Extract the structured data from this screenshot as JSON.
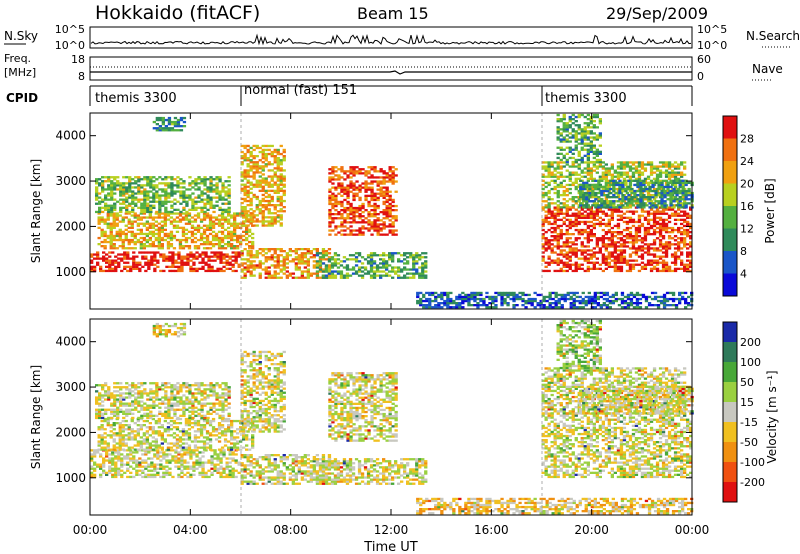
{
  "header": {
    "station": "Hokkaido (fitACF)",
    "beam": "Beam 15",
    "date": "29/Sep/2009"
  },
  "top_panels": {
    "nsky": {
      "label": "N.Sky",
      "left_ticks": [
        "10^5",
        "10^0"
      ],
      "right_ticks": [
        "10^5",
        "10^0"
      ],
      "right_label": "N.Search",
      "right_line_style": "dotted"
    },
    "freq": {
      "label_line1": "Freq.",
      "label_line2": "[MHz]",
      "left_ticks": [
        "18",
        "8"
      ],
      "right_ticks": [
        "60",
        "0"
      ],
      "right_label": "Nave",
      "right_line_style": "dotted"
    },
    "cpid": {
      "label": "CPID",
      "segments": [
        {
          "start_hour": 0,
          "name": "themis 3300"
        },
        {
          "start_hour": 6,
          "name": "normal (fast) 151"
        },
        {
          "start_hour": 18,
          "name": "themis 3300"
        }
      ]
    }
  },
  "x_axis": {
    "label": "Time UT",
    "ticks": [
      "00:00",
      "04:00",
      "08:00",
      "12:00",
      "16:00",
      "20:00",
      "00:00"
    ],
    "range_hours": [
      0,
      24
    ]
  },
  "panels": {
    "power": {
      "ylabel": "Slant Range [km]",
      "yticks": [
        1000,
        2000,
        3000,
        4000
      ],
      "yrange": [
        180,
        4500
      ],
      "colorbar_label": "Power [dB]",
      "colorbar_ticks": [
        "4",
        "8",
        "12",
        "16",
        "20",
        "24",
        "28"
      ],
      "colors": [
        "#0a0ad8",
        "#1a56c8",
        "#2f8a5a",
        "#54b040",
        "#b8d020",
        "#f0a010",
        "#f07010",
        "#e01010"
      ]
    },
    "velocity": {
      "ylabel": "Slant Range [km]",
      "yticks": [
        1000,
        2000,
        3000,
        4000
      ],
      "yrange": [
        180,
        4500
      ],
      "colorbar_label": "Velocity [m s⁻¹]",
      "colorbar_ticks": [
        "200",
        "100",
        "50",
        "15",
        "-15",
        "-50",
        "-100",
        "-200"
      ],
      "colors": [
        "#1a2aa8",
        "#2f7a5a",
        "#48a838",
        "#9ad040",
        "#c8c8c0",
        "#f0c020",
        "#f09010",
        "#f05010",
        "#e01010"
      ]
    }
  },
  "chart_data": [
    {
      "type": "heatmap",
      "title": "Power [dB]",
      "xlabel": "Time UT",
      "ylabel": "Slant Range [km]",
      "xlim_hours": [
        0,
        24
      ],
      "ylim": [
        180,
        4500
      ],
      "zlim": [
        0,
        30
      ],
      "echo_regions": [
        {
          "t0": 0.0,
          "t1": 6.0,
          "r0": 1000,
          "r1": 1450,
          "value": 28
        },
        {
          "t0": 0.3,
          "t1": 6.5,
          "r0": 1500,
          "r1": 2300,
          "value": 20
        },
        {
          "t0": 0.2,
          "t1": 5.5,
          "r0": 2300,
          "r1": 3100,
          "value": 14
        },
        {
          "t0": 2.5,
          "t1": 3.8,
          "r0": 4100,
          "r1": 4400,
          "value": 10
        },
        {
          "t0": 6.0,
          "t1": 9.5,
          "r0": 850,
          "r1": 1500,
          "value": 22
        },
        {
          "t0": 6.0,
          "t1": 7.8,
          "r0": 2000,
          "r1": 3800,
          "value": 20
        },
        {
          "t0": 9.5,
          "t1": 12.2,
          "r0": 1800,
          "r1": 3300,
          "value": 26
        },
        {
          "t0": 9.0,
          "t1": 13.4,
          "r0": 850,
          "r1": 1400,
          "value": 12
        },
        {
          "t0": 13.0,
          "t1": 24.0,
          "r0": 200,
          "r1": 550,
          "value": 6
        },
        {
          "t0": 18.0,
          "t1": 24.0,
          "r0": 1000,
          "r1": 2400,
          "value": 27
        },
        {
          "t0": 18.0,
          "t1": 23.7,
          "r0": 2400,
          "r1": 3400,
          "value": 16
        },
        {
          "t0": 19.5,
          "t1": 24.0,
          "r0": 2400,
          "r1": 3000,
          "value": 10
        },
        {
          "t0": 18.6,
          "t1": 20.4,
          "r0": 3400,
          "r1": 4450,
          "value": 12
        }
      ]
    },
    {
      "type": "heatmap",
      "title": "Velocity [m s⁻¹]",
      "xlabel": "Time UT",
      "ylabel": "Slant Range [km]",
      "xlim_hours": [
        0,
        24
      ],
      "ylim": [
        180,
        4500
      ],
      "zlim": [
        -200,
        200
      ],
      "echo_regions": [
        {
          "t0": 0.0,
          "t1": 6.0,
          "r0": 1000,
          "r1": 1600,
          "value": 0
        },
        {
          "t0": 0.3,
          "t1": 6.5,
          "r0": 1600,
          "r1": 2300,
          "value": 0
        },
        {
          "t0": 0.2,
          "t1": 5.5,
          "r0": 2300,
          "r1": 3100,
          "value": 0
        },
        {
          "t0": 2.5,
          "t1": 3.8,
          "r0": 4100,
          "r1": 4400,
          "value": -30
        },
        {
          "t0": 6.0,
          "t1": 9.5,
          "r0": 850,
          "r1": 1500,
          "value": 0
        },
        {
          "t0": 6.0,
          "t1": 7.8,
          "r0": 2000,
          "r1": 3800,
          "value": 0
        },
        {
          "t0": 9.5,
          "t1": 12.2,
          "r0": 1800,
          "r1": 3300,
          "value": 0
        },
        {
          "t0": 9.0,
          "t1": 13.4,
          "r0": 850,
          "r1": 1400,
          "value": 0
        },
        {
          "t0": 13.0,
          "t1": 24.0,
          "r0": 200,
          "r1": 550,
          "value": -40
        },
        {
          "t0": 18.0,
          "t1": 24.0,
          "r0": 1000,
          "r1": 2400,
          "value": 0
        },
        {
          "t0": 18.0,
          "t1": 23.7,
          "r0": 2400,
          "r1": 3400,
          "value": 0
        },
        {
          "t0": 19.5,
          "t1": 24.0,
          "r0": 2400,
          "r1": 3000,
          "value": 0
        },
        {
          "t0": 18.6,
          "t1": 20.4,
          "r0": 3400,
          "r1": 4450,
          "value": 40
        }
      ]
    }
  ]
}
